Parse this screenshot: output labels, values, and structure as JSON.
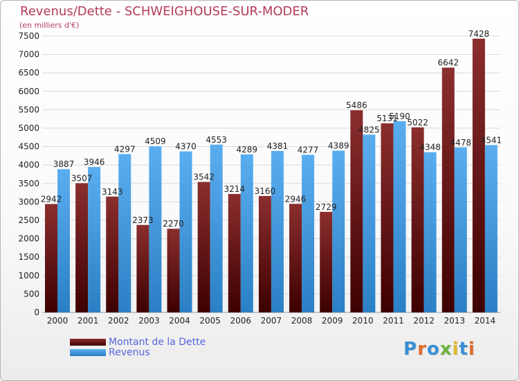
{
  "title": "Revenus/Dette - SCHWEIGHOUSE-SUR-MODER",
  "subtitle": "(en milliers d'€)",
  "logo_text": "Proxiti",
  "colors": {
    "dette_top": "#8b2e2e",
    "dette_bottom": "#3d0000",
    "revenus_top": "#5aaef0",
    "revenus_bottom": "#2b7fc4",
    "grid": "#d9d9d9",
    "axis_text": "#222222",
    "title": "#b23a58",
    "legend_text": "#5566dd"
  },
  "chart_data": {
    "type": "bar",
    "title": "Revenus/Dette - SCHWEIGHOUSE-SUR-MODER",
    "subtitle": "(en milliers d'€)",
    "categories": [
      "2000",
      "2001",
      "2002",
      "2003",
      "2004",
      "2005",
      "2006",
      "2007",
      "2008",
      "2009",
      "2010",
      "2011",
      "2012",
      "2013",
      "2014"
    ],
    "series": [
      {
        "name": "Montant de la Dette",
        "values": [
          2942,
          3507,
          3143,
          2373,
          2270,
          3542,
          3214,
          3160,
          2946,
          2729,
          5486,
          5131,
          5022,
          6642,
          7428
        ]
      },
      {
        "name": "Revenus",
        "values": [
          3887,
          3946,
          4297,
          4509,
          4370,
          4553,
          4289,
          4381,
          4277,
          4389,
          4825,
          5190,
          4348,
          4478,
          4541
        ]
      }
    ],
    "yticks": [
      0,
      500,
      1000,
      1500,
      2000,
      2500,
      3000,
      3500,
      4000,
      4500,
      5000,
      5500,
      6000,
      6500,
      7000,
      7500
    ],
    "ylim": [
      0,
      7500
    ],
    "grid": true,
    "legend_position": "bottom-left"
  }
}
